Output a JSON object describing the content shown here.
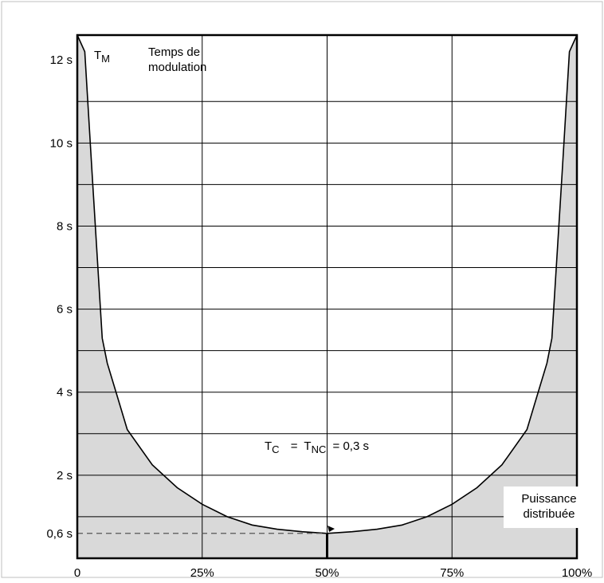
{
  "chart_data": {
    "type": "area",
    "title": "",
    "xlabel": "Puissance distribuée",
    "ylabel": "Temps de modulation",
    "ylabel_symbol": "T",
    "ylabel_sub": "M",
    "x_unit": "%",
    "xlim": [
      0,
      100
    ],
    "ylim": [
      0,
      12.6
    ],
    "x_ticks": [
      {
        "value": 0,
        "label": "0"
      },
      {
        "value": 25,
        "label": "25%"
      },
      {
        "value": 50,
        "label": "50%"
      },
      {
        "value": 75,
        "label": "75%"
      },
      {
        "value": 100,
        "label": "100%"
      }
    ],
    "y_ticks": [
      {
        "value": 0.6,
        "label": "0,6 s"
      },
      {
        "value": 2,
        "label": "2 s"
      },
      {
        "value": 4,
        "label": "4 s"
      },
      {
        "value": 6,
        "label": "6 s"
      },
      {
        "value": 8,
        "label": "8 s"
      },
      {
        "value": 10,
        "label": "10 s"
      },
      {
        "value": 12,
        "label": "12 s"
      }
    ],
    "grid_y": [
      1,
      2,
      3,
      4,
      5,
      6,
      7,
      8,
      9,
      10,
      11
    ],
    "grid_x": [
      25,
      50,
      75
    ],
    "shaded_region": "below-curve",
    "series": [
      {
        "points": [
          [
            0,
            12.6
          ],
          [
            1.5,
            12.2
          ],
          [
            3,
            9.2
          ],
          [
            5,
            5.3
          ],
          [
            6,
            4.7
          ],
          [
            8,
            3.9
          ],
          [
            10,
            3.1
          ],
          [
            15,
            2.25
          ],
          [
            20,
            1.7
          ],
          [
            25,
            1.3
          ],
          [
            30,
            1.0
          ],
          [
            35,
            0.8
          ],
          [
            40,
            0.7
          ],
          [
            45,
            0.64
          ],
          [
            50,
            0.6
          ],
          [
            55,
            0.64
          ],
          [
            60,
            0.7
          ],
          [
            65,
            0.8
          ],
          [
            70,
            1.0
          ],
          [
            75,
            1.3
          ],
          [
            80,
            1.7
          ],
          [
            85,
            2.25
          ],
          [
            90,
            3.1
          ],
          [
            92,
            3.9
          ],
          [
            94,
            4.7
          ],
          [
            95,
            5.3
          ],
          [
            97,
            9.2
          ],
          [
            98.5,
            12.2
          ],
          [
            100,
            12.6
          ]
        ]
      }
    ],
    "annotation": {
      "tc_symbol": "T",
      "tc_sub": "C",
      "eq": "=",
      "tnc_symbol": "T",
      "tnc_sub": "NC",
      "value": "= 0,3 s",
      "x": 50,
      "y": 0.6
    },
    "reference_line": {
      "y": 0.6,
      "x_from": 0,
      "x_to": 50,
      "style": "dashed"
    },
    "colors": {
      "shade": "#d9d9d9",
      "grid": "#000000",
      "curve": "#000000",
      "dashed": "#555555",
      "frame": "#bfbfbf"
    }
  }
}
